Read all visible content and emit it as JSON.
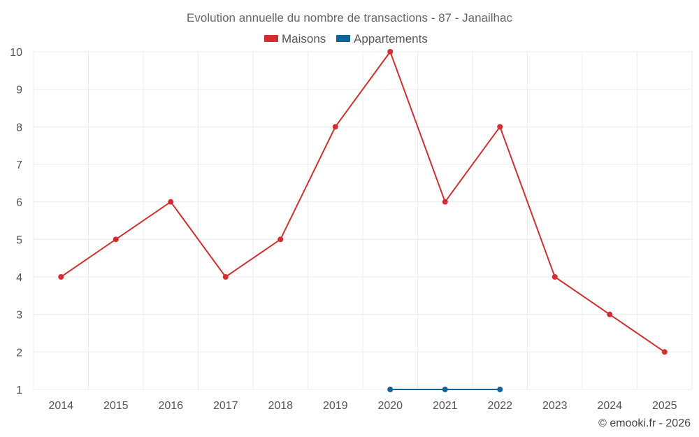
{
  "chart_data": {
    "type": "line",
    "title": "Evolution annuelle du nombre de transactions - 87 - Janailhac",
    "x": [
      "2014",
      "2015",
      "2016",
      "2017",
      "2018",
      "2019",
      "2020",
      "2021",
      "2022",
      "2023",
      "2024",
      "2025"
    ],
    "ylim": [
      1,
      10
    ],
    "yticks": [
      "1",
      "2",
      "3",
      "4",
      "5",
      "6",
      "7",
      "8",
      "9",
      "10"
    ],
    "grid": true,
    "legend_position": "top-center",
    "series": [
      {
        "name": "Maisons",
        "color": "#d32f2f",
        "values": [
          4,
          5,
          6,
          4,
          5,
          8,
          10,
          6,
          8,
          4,
          3,
          2
        ]
      },
      {
        "name": "Appartements",
        "color": "#0d6598",
        "values": [
          null,
          null,
          null,
          null,
          null,
          null,
          1,
          1,
          1,
          null,
          null,
          null
        ]
      }
    ],
    "credit": "© emooki.fr - 2026"
  }
}
